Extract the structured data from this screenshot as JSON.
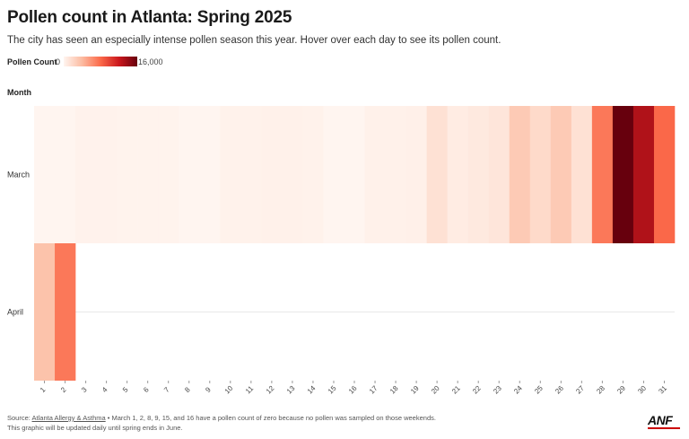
{
  "title": "Pollen count in Atlanta: Spring 2025",
  "subtitle": "The city has seen an especially intense pollen season this year. Hover over each day to see its pollen count.",
  "legend": {
    "title": "Pollen Count",
    "min_label": "0",
    "max_label": "16,000",
    "min": 0,
    "max": 16000
  },
  "footer": {
    "source_prefix": "Source: ",
    "source_link": "Atlanta Allergy & Asthma",
    "source_note": " • March 1, 2, 8, 9, 15, and 16 have a pollen count of zero because no pollen was sampled on those weekends.",
    "line2": "This graphic will be updated daily until spring ends in June."
  },
  "logo": "ANF",
  "colors": {
    "low": "#fff5f0",
    "mid": "#fb6a4a",
    "high": "#67000d",
    "grid": "#e8e8e8"
  },
  "chart_data": {
    "type": "heatmap",
    "ylabel": "Month",
    "x": [
      "1",
      "2",
      "3",
      "4",
      "5",
      "6",
      "7",
      "8",
      "9",
      "10",
      "11",
      "12",
      "13",
      "14",
      "15",
      "16",
      "17",
      "18",
      "19",
      "20",
      "21",
      "22",
      "23",
      "24",
      "25",
      "26",
      "27",
      "28",
      "29",
      "30",
      "31"
    ],
    "y": [
      "March",
      "April"
    ],
    "vmin": 0,
    "vmax": 16000,
    "values": [
      [
        0,
        0,
        200,
        200,
        150,
        150,
        180,
        0,
        0,
        250,
        250,
        300,
        300,
        250,
        0,
        0,
        300,
        300,
        400,
        1500,
        700,
        900,
        1200,
        3000,
        2000,
        3000,
        1500,
        6000,
        16000,
        12500,
        6500
      ],
      [
        3500,
        6000,
        null,
        null,
        null,
        null,
        null,
        null,
        null,
        null,
        null,
        null,
        null,
        null,
        null,
        null,
        null,
        null,
        null,
        null,
        null,
        null,
        null,
        null,
        null,
        null,
        null,
        null,
        null,
        null,
        null
      ]
    ]
  }
}
